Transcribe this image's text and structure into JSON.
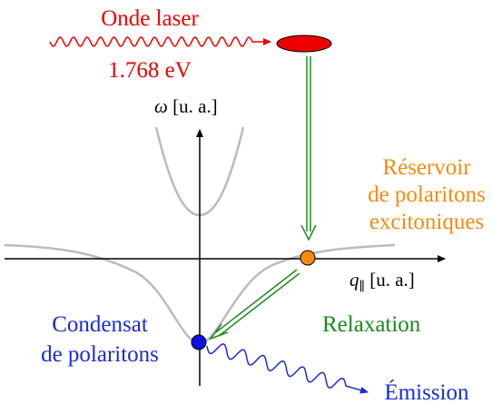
{
  "laser": {
    "label": "Onde laser",
    "energy": "1.768 eV"
  },
  "axes": {
    "y_label": {
      "symbol": "ω",
      "unit": "[u. a.]"
    },
    "x_label": {
      "symbol": "q",
      "subscript": "∥",
      "unit": "[u. a.]"
    }
  },
  "reservoir": {
    "lines": [
      "Réservoir",
      "de polaritons",
      "excitoniques"
    ]
  },
  "relaxation": "Relaxation",
  "condensate": {
    "lines": [
      "Condensat",
      "de polaritons"
    ]
  },
  "emission": "Émission"
}
